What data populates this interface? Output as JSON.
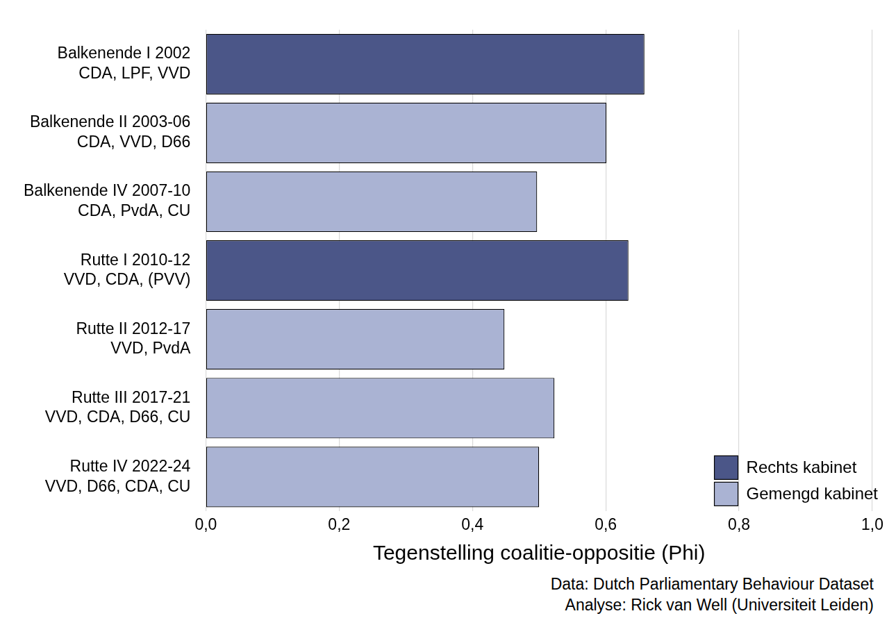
{
  "chart_data": {
    "type": "bar",
    "orientation": "horizontal",
    "x_label": "Tegenstelling coalitie-oppositie (Phi)",
    "annotations": [
      "Data: Dutch Parliamentary Behaviour Dataset",
      "Analyse: Rick van Well (Universiteit Leiden)"
    ],
    "categories": [
      [
        "Balkenende I 2002",
        "CDA, LPF, VVD"
      ],
      [
        "Balkenende II 2003-06",
        "CDA, VVD, D66"
      ],
      [
        "Balkenende IV 2007-10",
        "CDA, PvdA, CU"
      ],
      [
        "Rutte I 2010-12",
        "VVD, CDA, (PVV)"
      ],
      [
        "Rutte II 2012-17",
        "VVD, PvdA"
      ],
      [
        "Rutte III 2017-21",
        "VVD, CDA, D66, CU"
      ],
      [
        "Rutte IV 2022-24",
        "VVD, D66, CDA, CU"
      ]
    ],
    "series": [
      {
        "name": "Rechts kabinet",
        "color": "#4b5688",
        "values": [
          0.658,
          null,
          null,
          0.634,
          null,
          null,
          null
        ]
      },
      {
        "name": "Gemengd kabinet",
        "color": "#aab3d3",
        "values": [
          null,
          0.601,
          0.497,
          null,
          0.448,
          0.523,
          0.5
        ]
      }
    ],
    "xlim": [
      0,
      1
    ],
    "xticks": [
      {
        "value": 0,
        "label": "0,0"
      },
      {
        "value": 0.2,
        "label": "0,2"
      },
      {
        "value": 0.4,
        "label": "0,4"
      },
      {
        "value": 0.6,
        "label": "0,6"
      },
      {
        "value": 0.8,
        "label": "0,8"
      },
      {
        "value": 1,
        "label": "1,0"
      }
    ],
    "grid": true,
    "legend": "bottom-right"
  }
}
